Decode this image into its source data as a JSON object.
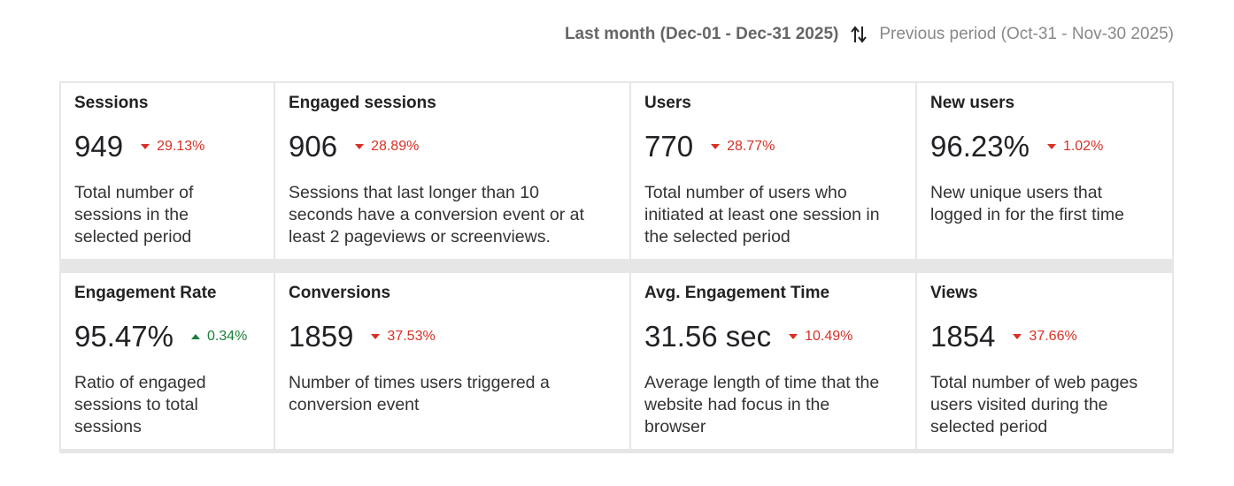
{
  "header": {
    "current_period": "Last month (Dec-01 - Dec-31 2025)",
    "previous_period": "Previous period (Oct-31 - Nov-30 2025)"
  },
  "cards": [
    {
      "title": "Sessions",
      "value": "949",
      "change": "29.13%",
      "direction": "down",
      "description": "Total number of sessions in the selected period"
    },
    {
      "title": "Engaged sessions",
      "value": "906",
      "change": "28.89%",
      "direction": "down",
      "description": "Sessions that last longer than 10 seconds have a conversion event or at least 2 pageviews or screenviews."
    },
    {
      "title": "Users",
      "value": "770",
      "change": "28.77%",
      "direction": "down",
      "description": "Total number of users who initiated at least one session in the selected period"
    },
    {
      "title": "New users",
      "value": "96.23%",
      "change": "1.02%",
      "direction": "down",
      "description": "New unique users that logged in for the first time"
    },
    {
      "title": "Engagement Rate",
      "value": "95.47%",
      "change": "0.34%",
      "direction": "up",
      "description": "Ratio of engaged sessions to total sessions"
    },
    {
      "title": "Conversions",
      "value": "1859",
      "change": "37.53%",
      "direction": "down",
      "description": "Number of times users triggered a conversion event"
    },
    {
      "title": "Avg. Engagement Time",
      "value": "31.56 sec",
      "change": "10.49%",
      "direction": "down",
      "description": "Average length of time that the website had focus in the browser"
    },
    {
      "title": "Views",
      "value": "1854",
      "change": "37.66%",
      "direction": "down",
      "description": "Total number of web pages users visited during the selected period"
    }
  ]
}
